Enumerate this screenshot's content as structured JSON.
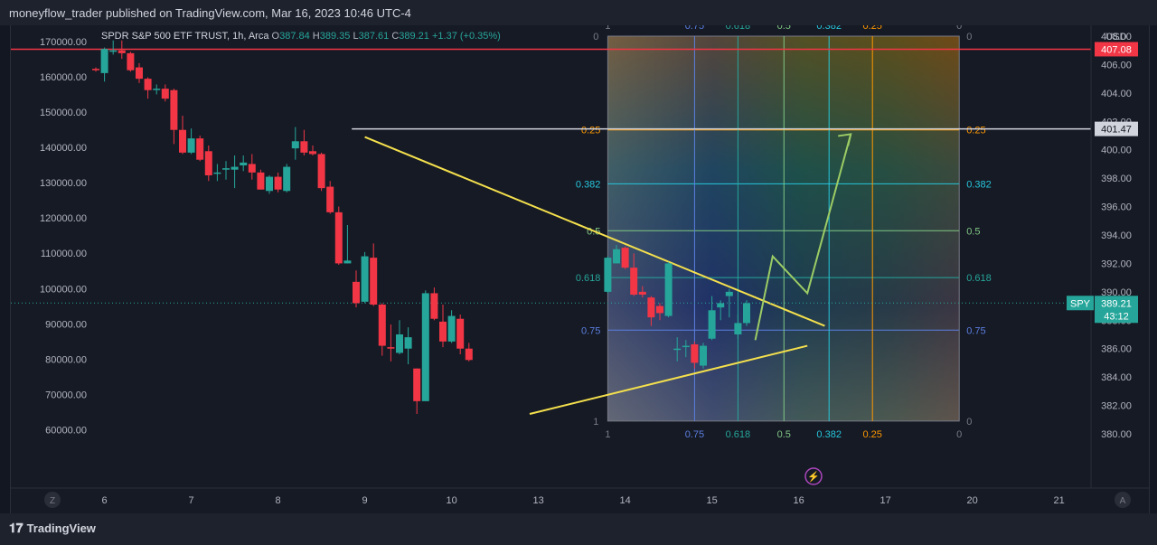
{
  "header": {
    "title": "moneyflow_trader published on TradingView.com, Mar 16, 2023 10:46 UTC-4"
  },
  "legend": {
    "symbol": "SPDR S&P 500 ETF TRUST, 1h, Arca",
    "open_label": "O",
    "open": "387.84",
    "high_label": "H",
    "high": "389.35",
    "low_label": "L",
    "low": "387.61",
    "close_label": "C",
    "close": "389.21",
    "change": "+1.37 (+0.35%)"
  },
  "footer": {
    "brand": "TradingView"
  },
  "chart_data": {
    "type": "candlestick",
    "currency": "USD",
    "x_tick_labels": [
      "6",
      "7",
      "8",
      "9",
      "10",
      "13",
      "14",
      "15",
      "16",
      "17",
      "20",
      "21"
    ],
    "x_tick_positions": [
      1,
      11,
      21,
      31,
      41,
      51,
      61,
      71,
      81,
      91,
      101,
      111
    ],
    "y_right": {
      "min": 379.3,
      "max": 409.6,
      "ticks": [
        "380.00",
        "382.00",
        "384.00",
        "386.00",
        "388.00",
        "390.00",
        "392.00",
        "394.00",
        "396.00",
        "398.00",
        "400.00",
        "402.00",
        "404.00",
        "406.00",
        "408.00"
      ]
    },
    "y_left": {
      "min": 56000,
      "max": 178000,
      "ticks": [
        "60000.00",
        "70000.00",
        "80000.00",
        "90000.00",
        "100000.00",
        "110000.00",
        "120000.00",
        "130000.00",
        "140000.00",
        "150000.00",
        "160000.00",
        "170000.00"
      ]
    },
    "candles": [
      [
        0,
        405.7,
        405.6,
        405.8,
        405.5
      ],
      [
        1,
        405.4,
        407.1,
        407.2,
        404.8
      ],
      [
        2,
        406.9,
        407.0,
        407.7,
        406.7
      ],
      [
        3,
        407.0,
        406.8,
        407.7,
        406.4
      ],
      [
        4,
        406.8,
        405.6,
        406.9,
        405.5
      ],
      [
        5,
        405.8,
        405.0,
        406.1,
        404.7
      ],
      [
        6,
        405.0,
        404.2,
        405.1,
        403.6
      ],
      [
        7,
        404.3,
        404.3,
        404.6,
        403.9
      ],
      [
        8,
        404.3,
        403.6,
        404.6,
        403.4
      ],
      [
        9,
        404.2,
        401.4,
        404.3,
        400.4
      ],
      [
        10,
        401.4,
        399.8,
        402.4,
        399.7
      ],
      [
        11,
        399.8,
        400.8,
        401.5,
        399.7
      ],
      [
        12,
        400.8,
        399.3,
        401.0,
        399.2
      ],
      [
        13,
        399.9,
        398.2,
        400.3,
        397.8
      ],
      [
        14,
        398.4,
        398.4,
        399.0,
        397.8
      ],
      [
        15,
        398.6,
        398.7,
        399.2,
        397.9
      ],
      [
        16,
        398.6,
        398.8,
        399.6,
        397.3
      ],
      [
        17,
        398.9,
        399.1,
        399.6,
        398.5
      ],
      [
        18,
        399.0,
        398.4,
        399.7,
        397.9
      ],
      [
        19,
        398.4,
        397.2,
        398.6,
        397.2
      ],
      [
        20,
        397.1,
        398.1,
        398.2,
        396.9
      ],
      [
        21,
        398.1,
        397.2,
        398.4,
        397.0
      ],
      [
        22,
        397.1,
        398.8,
        399.0,
        397.0
      ],
      [
        23,
        400.1,
        400.6,
        401.6,
        399.3
      ],
      [
        24,
        400.6,
        399.8,
        401.4,
        399.6
      ],
      [
        25,
        399.9,
        399.7,
        400.3,
        399.6
      ],
      [
        26,
        399.7,
        397.3,
        399.8,
        397.1
      ],
      [
        27,
        397.4,
        395.6,
        397.8,
        395.5
      ],
      [
        28,
        395.6,
        392.0,
        396.0,
        391.9
      ],
      [
        29,
        392.0,
        392.2,
        394.7,
        392.0
      ],
      [
        30,
        390.7,
        389.2,
        391.5,
        388.9
      ],
      [
        31,
        389.3,
        392.5,
        392.8,
        389.2
      ],
      [
        32,
        392.4,
        389.1,
        393.4,
        389.0
      ],
      [
        33,
        389.1,
        386.2,
        389.2,
        385.5
      ],
      [
        34,
        386.1,
        386.0,
        387.7,
        385.1
      ],
      [
        35,
        385.7,
        387.0,
        388.0,
        385.6
      ],
      [
        36,
        386.0,
        386.8,
        387.5,
        384.9
      ],
      [
        37,
        384.6,
        382.3,
        384.6,
        381.4
      ],
      [
        38,
        382.3,
        389.9,
        390.1,
        382.3
      ],
      [
        39,
        389.9,
        388.1,
        390.3,
        388.0
      ],
      [
        40,
        387.9,
        386.5,
        389.1,
        386.1
      ],
      [
        41,
        386.5,
        388.3,
        388.7,
        386.4
      ],
      [
        42,
        388.1,
        386.0,
        388.4,
        385.6
      ],
      [
        43,
        386.0,
        385.2,
        386.4,
        385.1
      ],
      [
        59,
        390.0,
        392.4,
        392.5,
        389.9
      ],
      [
        60,
        392.0,
        393.0,
        393.3,
        392.0
      ],
      [
        61,
        393.1,
        391.7,
        393.2,
        391.6
      ],
      [
        62,
        391.7,
        389.8,
        392.7,
        389.7
      ],
      [
        63,
        390.0,
        389.8,
        390.4,
        389.6
      ],
      [
        64,
        389.6,
        388.2,
        389.7,
        387.6
      ],
      [
        65,
        389.0,
        388.5,
        389.2,
        388.0
      ],
      [
        66,
        388.3,
        392.0,
        392.1,
        388.2
      ],
      [
        67,
        386.0,
        386.0,
        386.8,
        385.1
      ],
      [
        68,
        386.2,
        386.2,
        386.6,
        385.4
      ],
      [
        69,
        386.3,
        385.0,
        386.5,
        384.6
      ],
      [
        70,
        384.8,
        386.2,
        386.4,
        384.6
      ],
      [
        71,
        386.7,
        388.7,
        389.7,
        386.6
      ],
      [
        72,
        388.9,
        389.2,
        389.4,
        388.0
      ],
      [
        73,
        389.7,
        390.0,
        390.2,
        388.2
      ],
      [
        74,
        387.0,
        387.8,
        388.4,
        386.7
      ],
      [
        75,
        387.8,
        389.2,
        389.4,
        387.6
      ]
    ],
    "lines": [
      {
        "name": "red-horizontal-level",
        "color": "#f23645",
        "price": 407.08
      },
      {
        "name": "white-horizontal-level",
        "color": "#d1d4dc",
        "price": 401.47,
        "from_x": 29.5
      },
      {
        "name": "upper-trendline",
        "color": "#f4e04d",
        "x1": 31,
        "y1": 400.9,
        "x2": 84,
        "y2": 387.6
      },
      {
        "name": "lower-trendline",
        "color": "#f4e04d",
        "x1": 50,
        "y1": 381.4,
        "x2": 82,
        "y2": 386.2
      }
    ],
    "projection": {
      "color": "#9ccc65",
      "points": [
        [
          76,
          386.6
        ],
        [
          78,
          392.5
        ],
        [
          82,
          389.9
        ],
        [
          87,
          401.1
        ]
      ]
    },
    "fib_box": {
      "x_start": 59,
      "x_end": 99.5,
      "y_top": 408.0,
      "y_bottom": 380.9,
      "h_levels": [
        {
          "label": "0.25",
          "price": 401.4,
          "color": "#ff9800"
        },
        {
          "label": "0.382",
          "price": 397.6,
          "color": "#26c6da"
        },
        {
          "label": "0.5",
          "price": 394.3,
          "color": "#81c784"
        },
        {
          "label": "0.618",
          "price": 391.0,
          "color": "#26a69a"
        },
        {
          "label": "0.75",
          "price": 387.3,
          "color": "#5b7fe0"
        }
      ],
      "v_levels": [
        {
          "label": "0.75",
          "x": 69,
          "color": "#5b7fe0"
        },
        {
          "label": "0.618",
          "x": 74,
          "color": "#26a69a"
        },
        {
          "label": "0.5",
          "x": 79.3,
          "color": "#81c784"
        },
        {
          "label": "0.382",
          "x": 84.5,
          "color": "#26c6da"
        },
        {
          "label": "0.25",
          "x": 89.5,
          "color": "#ff9800"
        }
      ],
      "corner_top_left": "0",
      "corner_bottom_left": "1",
      "top_left_label": "1",
      "top_right_label": "0"
    },
    "price_tags": [
      {
        "label": "407.08",
        "price": 407.08,
        "color": "#f23645"
      },
      {
        "label": "401.47",
        "price": 401.47,
        "color": "#d1d4dc"
      }
    ],
    "last_price": {
      "symbol": "SPY",
      "price": "389.21",
      "countdown": "43:12",
      "value": 389.21
    },
    "axis_buttons": {
      "left": "Z",
      "right": "A"
    }
  }
}
